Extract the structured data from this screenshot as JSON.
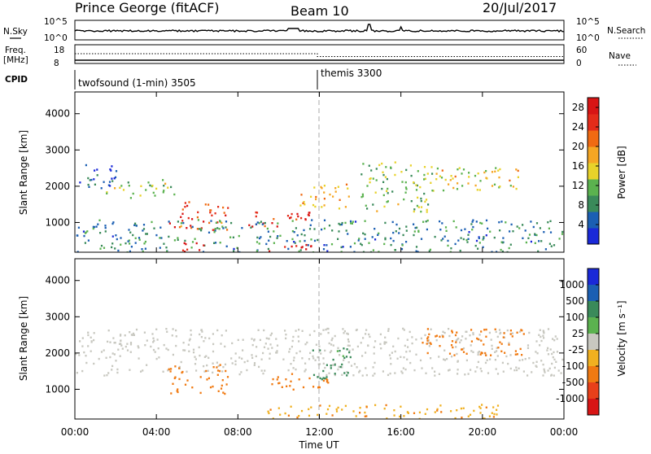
{
  "header": {
    "station": "Prince George (fitACF)",
    "beam": "Beam 10",
    "date": "20/Jul/2017"
  },
  "strips": {
    "nsky": {
      "label": "N.Sky",
      "ticks_left": [
        "10^5",
        "10^0"
      ],
      "ticks_right": [
        "10^5",
        "10^0"
      ],
      "right_label": "N.Search"
    },
    "freq": {
      "label_line1": "Freq.",
      "label_line2": "[MHz]",
      "ticks_left": [
        "18",
        "8"
      ],
      "ticks_right": [
        "60",
        "0"
      ],
      "right_label": "Nave"
    },
    "cpid": {
      "label": "CPID",
      "programs": [
        {
          "name": "twofsound (1-min) 3505",
          "start_hour": 0
        },
        {
          "name": "themis 3300",
          "start_hour": 12
        }
      ]
    }
  },
  "colors": {
    "power": [
      "#1a29d8",
      "#1b5fb3",
      "#3a8a5a",
      "#5bb24f",
      "#e8d22a",
      "#f5a623",
      "#f06a12",
      "#e42c1a",
      "#d81515"
    ],
    "velocity": [
      "#1a29d8",
      "#1b5fb3",
      "#3a8a5a",
      "#5bb24f",
      "#c8c8c0",
      "#f0b020",
      "#f07a12",
      "#e8401a",
      "#d81515"
    ],
    "ground": "#c8c8c0"
  },
  "chart_data": [
    {
      "type": "heatmap",
      "name": "power",
      "ylabel": "Slant Range [km]",
      "xlabel": "",
      "xlim": [
        0,
        24
      ],
      "ylim": [
        180,
        4600
      ],
      "yticks": [
        "1000",
        "2000",
        "3000",
        "4000"
      ],
      "ytick_values": [
        1000,
        2000,
        3000,
        4000
      ],
      "colorbar": {
        "label": "Power [dB]",
        "ticks": [
          "4",
          "8",
          "12",
          "16",
          "20",
          "24",
          "28"
        ],
        "range": [
          0,
          30
        ]
      },
      "features": [
        {
          "x": [
            0.2,
            2.0
          ],
          "y": [
            1900,
            2700
          ],
          "value": 4
        },
        {
          "x": [
            1.5,
            5.0
          ],
          "y": [
            1700,
            2200
          ],
          "value": 12
        },
        {
          "x": [
            4.5,
            7.5
          ],
          "y": [
            800,
            1600
          ],
          "value": 24
        },
        {
          "x": [
            8.5,
            11.5
          ],
          "y": [
            900,
            1400
          ],
          "value": 26
        },
        {
          "x": [
            11.0,
            13.5
          ],
          "y": [
            1400,
            2100
          ],
          "value": 18
        },
        {
          "x": [
            14.0,
            17.5
          ],
          "y": [
            1300,
            2700
          ],
          "value": 12
        },
        {
          "x": [
            17.5,
            22.0
          ],
          "y": [
            1900,
            2600
          ],
          "value": 16
        },
        {
          "x": [
            0.0,
            24.0
          ],
          "y": [
            200,
            1100
          ],
          "value": 8
        },
        {
          "x": [
            5.2,
            6.8
          ],
          "y": [
            200,
            500
          ],
          "value": 30
        },
        {
          "x": [
            9.5,
            11.8
          ],
          "y": [
            200,
            450
          ],
          "value": 28
        }
      ]
    },
    {
      "type": "heatmap",
      "name": "velocity",
      "ylabel": "Slant Range [km]",
      "xlabel": "Time UT",
      "xlim": [
        0,
        24
      ],
      "ylim": [
        180,
        4600
      ],
      "xticks": [
        "00:00",
        "04:00",
        "08:00",
        "12:00",
        "16:00",
        "20:00",
        "00:00"
      ],
      "xtick_values": [
        0,
        4,
        8,
        12,
        16,
        20,
        24
      ],
      "yticks": [
        "1000",
        "2000",
        "3000",
        "4000"
      ],
      "ytick_values": [
        1000,
        2000,
        3000,
        4000
      ],
      "colorbar": {
        "label": "Velocity [m s⁻¹]",
        "ticks": [
          "1000",
          "500",
          "100",
          "25",
          "-25",
          "-100",
          "-500",
          "-1000"
        ]
      },
      "features": [
        {
          "x": [
            0.0,
            24.0
          ],
          "y": [
            1400,
            2700
          ],
          "value": 0
        },
        {
          "x": [
            4.5,
            7.5
          ],
          "y": [
            900,
            1700
          ],
          "value": -300
        },
        {
          "x": [
            9.5,
            12.5
          ],
          "y": [
            1000,
            1500
          ],
          "value": -300
        },
        {
          "x": [
            11.5,
            13.5
          ],
          "y": [
            1300,
            2200
          ],
          "value": 150
        },
        {
          "x": [
            17.0,
            22.0
          ],
          "y": [
            1900,
            2700
          ],
          "value": -300
        },
        {
          "x": [
            9.0,
            21.0
          ],
          "y": [
            200,
            600
          ],
          "value": -80
        }
      ]
    }
  ]
}
